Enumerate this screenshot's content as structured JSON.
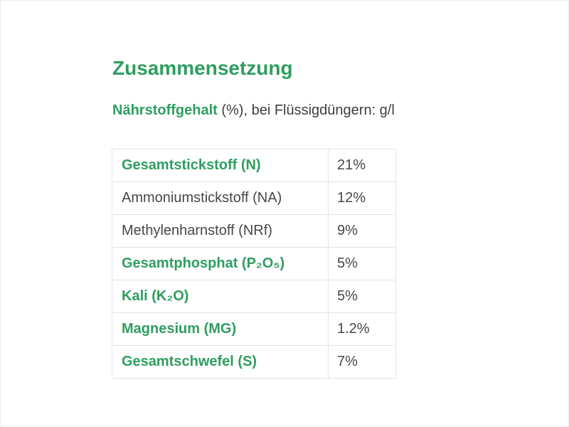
{
  "page": {
    "title": "Zusammensetzung"
  },
  "subtitle": {
    "highlight": "Nährstoffgehalt",
    "rest": " (%), bei Flüssigdüngern: g/l"
  },
  "colors": {
    "accent_green": "#2E9E60",
    "text_dark": "#3E3E3E",
    "table_border": "#E4E4E4"
  },
  "table": {
    "rows": [
      {
        "label": "Gesamtstickstoff (N)",
        "value": "21%",
        "highlight": true
      },
      {
        "label": "Ammoniumstickstoff (NA)",
        "value": "12%",
        "highlight": false
      },
      {
        "label": "Methylenharnstoff (NRf)",
        "value": "9%",
        "highlight": false
      },
      {
        "label": "Gesamtphosphat (P₂O₅)",
        "value": "5%",
        "highlight": true
      },
      {
        "label": "Kali (K₂O)",
        "value": "5%",
        "highlight": true
      },
      {
        "label": "Magnesium (MG)",
        "value": "1.2%",
        "highlight": true
      },
      {
        "label": "Gesamtschwefel (S)",
        "value": "7%",
        "highlight": true
      }
    ]
  }
}
